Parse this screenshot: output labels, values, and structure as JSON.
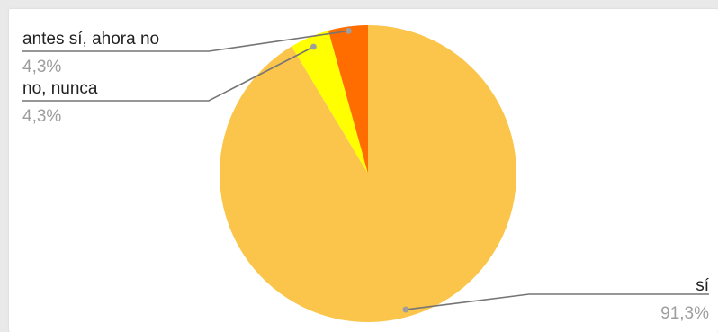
{
  "chart_data": {
    "type": "pie",
    "slices": [
      {
        "label": "sí",
        "value": 91.3,
        "percent_label": "91,3%",
        "color": "#fac54a"
      },
      {
        "label": "no, nunca",
        "value": 4.3,
        "percent_label": "4,3%",
        "color": "#ffff00"
      },
      {
        "label": "antes sí, ahora no",
        "value": 4.3,
        "percent_label": "4,3%",
        "color": "#ff6d01"
      }
    ],
    "legend_placement": "none",
    "label_style": "leader-lines"
  },
  "colors": {
    "leader_line": "#757575",
    "leader_dot": "#9e9e9e",
    "background": "#ffffff"
  }
}
